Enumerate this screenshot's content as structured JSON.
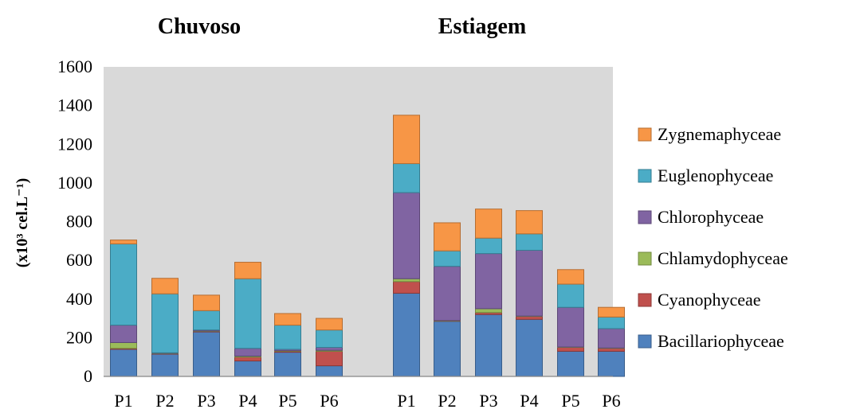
{
  "chart_data": {
    "type": "bar",
    "stacked": true,
    "groups": [
      {
        "title": "Chuvoso",
        "categories": [
          "P1",
          "P2",
          "P3",
          "P4",
          "P5",
          "P6"
        ]
      },
      {
        "title": "Estiagem",
        "categories": [
          "P1",
          "P2",
          "P3",
          "P4",
          "P5",
          "P6"
        ]
      }
    ],
    "ylabel": "(x10³ cel.L⁻¹)",
    "ylim": [
      0,
      1600
    ],
    "yticks": [
      0,
      200,
      400,
      600,
      800,
      1000,
      1200,
      1400,
      1600
    ],
    "grid": false,
    "legend_position": "right",
    "series": [
      {
        "name": "Bacillariophyceae",
        "color": "#4F81BD",
        "border": "#385D8A",
        "values": [
          140,
          115,
          230,
          80,
          125,
          55,
          430,
          285,
          320,
          295,
          130,
          130
        ]
      },
      {
        "name": "Cyanophyceae",
        "color": "#C0504D",
        "border": "#8C3836",
        "values": [
          5,
          2,
          3,
          20,
          5,
          75,
          60,
          2,
          10,
          15,
          20,
          15
        ]
      },
      {
        "name": "Chlamydophyceae",
        "color": "#9BBB59",
        "border": "#71893F",
        "values": [
          30,
          2,
          2,
          5,
          3,
          5,
          15,
          2,
          20,
          2,
          2,
          2
        ]
      },
      {
        "name": "Chlorophyceae",
        "color": "#8064A2",
        "border": "#5C4776",
        "values": [
          90,
          3,
          5,
          40,
          7,
          15,
          445,
          280,
          285,
          340,
          205,
          100
        ]
      },
      {
        "name": "Euglenophyceae",
        "color": "#4BACC6",
        "border": "#357D91",
        "values": [
          420,
          305,
          100,
          360,
          125,
          90,
          150,
          80,
          80,
          85,
          120,
          60
        ]
      },
      {
        "name": "Zygnemaphyceae",
        "color": "#F79646",
        "border": "#B66D31",
        "values": [
          20,
          80,
          80,
          85,
          60,
          60,
          250,
          145,
          150,
          120,
          75,
          50
        ]
      }
    ]
  }
}
